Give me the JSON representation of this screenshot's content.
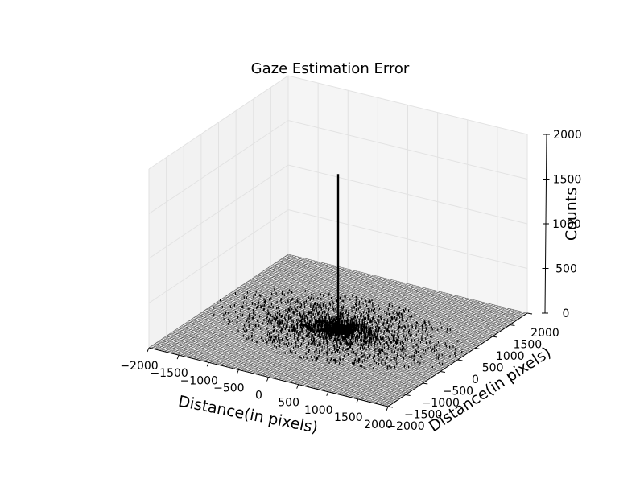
{
  "chart_data": {
    "type": "3d-histogram",
    "title": "Gaze Estimation Error",
    "xlabel": "Distance(in pixels)",
    "ylabel": "Distance(in pixels)",
    "zlabel": "Counts",
    "xlim": [
      -2000,
      2000
    ],
    "ylim": [
      -2000,
      2000
    ],
    "zlim": [
      0,
      2000
    ],
    "x_ticks": [
      "−2000",
      "−1500",
      "−1000",
      "−500",
      "0",
      "500",
      "1000",
      "1500",
      "2000"
    ],
    "y_ticks": [
      "−2000",
      "−1500",
      "−1000",
      "−500",
      "0",
      "500",
      "1000",
      "1500",
      "2000"
    ],
    "z_ticks": [
      "0",
      "500",
      "1000",
      "1500",
      "2000"
    ],
    "peak": {
      "x": 0,
      "y": 0,
      "count": 1750
    },
    "grid": true,
    "background_pane_color": "#f2f2f2",
    "bar_color": "#000000"
  }
}
